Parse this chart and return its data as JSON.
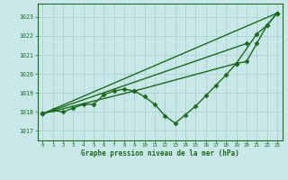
{
  "title": "Graphe pression niveau de la mer (hPa)",
  "background_color": "#c8e8e8",
  "grid_color": "#b0d4d4",
  "line_color": "#1a6b1a",
  "xlim": [
    -0.5,
    23.5
  ],
  "ylim": [
    1016.5,
    1023.7
  ],
  "yticks": [
    1017,
    1018,
    1019,
    1020,
    1021,
    1022,
    1023
  ],
  "xticks": [
    0,
    1,
    2,
    3,
    4,
    5,
    6,
    7,
    8,
    9,
    10,
    11,
    12,
    13,
    14,
    15,
    16,
    17,
    18,
    19,
    20,
    21,
    22,
    23
  ],
  "series": [
    {
      "x": [
        0,
        23
      ],
      "y": [
        1017.9,
        1023.2
      ],
      "marker": "D",
      "marker_size": 2.5,
      "linewidth": 1.0
    },
    {
      "x": [
        0,
        20
      ],
      "y": [
        1017.9,
        1021.6
      ],
      "marker": "D",
      "marker_size": 2.5,
      "linewidth": 1.0
    },
    {
      "x": [
        0,
        1,
        2,
        3,
        4,
        5,
        6,
        7,
        8,
        9,
        10,
        11,
        12,
        13,
        14,
        15,
        16,
        17,
        18,
        19,
        20,
        21,
        22,
        23
      ],
      "y": [
        1017.9,
        1018.1,
        1018.0,
        1018.2,
        1018.4,
        1018.4,
        1018.9,
        1019.1,
        1019.2,
        1019.1,
        1018.8,
        1018.4,
        1017.8,
        1017.4,
        1017.85,
        1018.3,
        1018.85,
        1019.4,
        1019.95,
        1020.55,
        1020.65,
        1021.6,
        1022.55,
        1023.2
      ],
      "marker": "D",
      "marker_size": 2.5,
      "linewidth": 1.0
    },
    {
      "x": [
        0,
        9,
        19,
        21,
        22,
        23
      ],
      "y": [
        1017.9,
        1019.1,
        1020.55,
        1022.1,
        1022.55,
        1023.2
      ],
      "marker": "D",
      "marker_size": 2.5,
      "linewidth": 1.0
    }
  ]
}
